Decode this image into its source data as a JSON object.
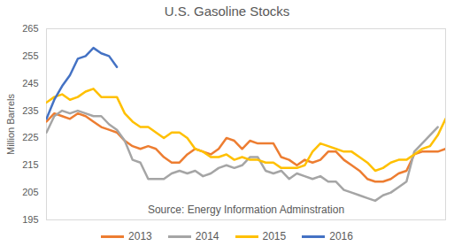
{
  "chart_data": {
    "type": "line",
    "title": "U.S. Gasoline Stocks",
    "y_label": "Million Barrels",
    "annotations": [
      {
        "text": "Source: Energy Information Adminstration"
      }
    ],
    "x": [
      1,
      2,
      3,
      4,
      5,
      6,
      7,
      8,
      9,
      10,
      11,
      12,
      13,
      14,
      15,
      16,
      17,
      18,
      19,
      20,
      21,
      22,
      23,
      24,
      25,
      26,
      27,
      28,
      29,
      30,
      31,
      32,
      33,
      34,
      35,
      36,
      37,
      38,
      39,
      40,
      41,
      42,
      43,
      44,
      45,
      46,
      47,
      48,
      49,
      50,
      51,
      52
    ],
    "xlim": [
      1,
      52
    ],
    "ylim": [
      195,
      265
    ],
    "yticks": [
      195,
      205,
      215,
      225,
      235,
      245,
      255,
      265
    ],
    "tick_labels": "y",
    "grid": false,
    "legend": "bottom",
    "series": [
      {
        "name": "2013",
        "color": "#ED7D31",
        "values": [
          231,
          234,
          233,
          232,
          234,
          233,
          231,
          229,
          228,
          227,
          224,
          222,
          221,
          222,
          221,
          218,
          216,
          216,
          219,
          221,
          220,
          219,
          221,
          225,
          224,
          221,
          224,
          223,
          223,
          223,
          218,
          217,
          215,
          217,
          216,
          217,
          220,
          220,
          217,
          215,
          213,
          210,
          209,
          209,
          210,
          212,
          213,
          219,
          220,
          220,
          220,
          221
        ]
      },
      {
        "name": "2014",
        "color": "#A5A5A5",
        "values": [
          227,
          233,
          235,
          234,
          235,
          234,
          233,
          233,
          230,
          228,
          224,
          217,
          216,
          210,
          210,
          210,
          212,
          213,
          212,
          213,
          211,
          212,
          214,
          215,
          214,
          215,
          218,
          218,
          213,
          212,
          213,
          210,
          212,
          211,
          210,
          211,
          209,
          209,
          206,
          205,
          204,
          203,
          202,
          204,
          205,
          207,
          209,
          220,
          223,
          226,
          229,
          null
        ]
      },
      {
        "name": "2015",
        "color": "#FFC000",
        "values": [
          238,
          240,
          241,
          239,
          240,
          242,
          243,
          240,
          240,
          240,
          234,
          231,
          229,
          229,
          227,
          225,
          227,
          227,
          225,
          221,
          220,
          218,
          218,
          219,
          217,
          218,
          217,
          217,
          216,
          216,
          214,
          214,
          214,
          215,
          220,
          223,
          222,
          221,
          220,
          220,
          218,
          216,
          213,
          214,
          216,
          217,
          217,
          219,
          221,
          222,
          226,
          232
        ]
      },
      {
        "name": "2016",
        "color": "#4472C4",
        "values": [
          232,
          239,
          244,
          248,
          254,
          255,
          258,
          256,
          255,
          251,
          null,
          null,
          null,
          null,
          null,
          null,
          null,
          null,
          null,
          null,
          null,
          null,
          null,
          null,
          null,
          null,
          null,
          null,
          null,
          null,
          null,
          null,
          null,
          null,
          null,
          null,
          null,
          null,
          null,
          null,
          null,
          null,
          null,
          null,
          null,
          null,
          null,
          null,
          null,
          null,
          null,
          null
        ]
      }
    ]
  }
}
